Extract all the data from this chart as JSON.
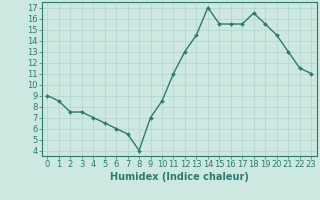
{
  "x": [
    0,
    1,
    2,
    3,
    4,
    5,
    6,
    7,
    8,
    9,
    10,
    11,
    12,
    13,
    14,
    15,
    16,
    17,
    18,
    19,
    20,
    21,
    22,
    23
  ],
  "y": [
    9.0,
    8.5,
    7.5,
    7.5,
    7.0,
    6.5,
    6.0,
    5.5,
    4.0,
    7.0,
    8.5,
    11.0,
    13.0,
    14.5,
    17.0,
    15.5,
    15.5,
    15.5,
    16.5,
    15.5,
    14.5,
    13.0,
    11.5,
    11.0
  ],
  "line_color": "#2d7a6e",
  "marker": "D",
  "marker_size": 2.0,
  "bg_color": "#cce8e0",
  "grid_color": "#b0d4cc",
  "xlabel": "Humidex (Indice chaleur)",
  "xlim": [
    -0.5,
    23.5
  ],
  "ylim": [
    3.5,
    17.5
  ],
  "yticks": [
    4,
    5,
    6,
    7,
    8,
    9,
    10,
    11,
    12,
    13,
    14,
    15,
    16,
    17
  ],
  "xticks": [
    0,
    1,
    2,
    3,
    4,
    5,
    6,
    7,
    8,
    9,
    10,
    11,
    12,
    13,
    14,
    15,
    16,
    17,
    18,
    19,
    20,
    21,
    22,
    23
  ],
  "tick_color": "#2d7a6e",
  "axis_color": "#2d7a6e",
  "label_fontsize": 7,
  "tick_fontsize": 6,
  "linewidth": 1.0
}
